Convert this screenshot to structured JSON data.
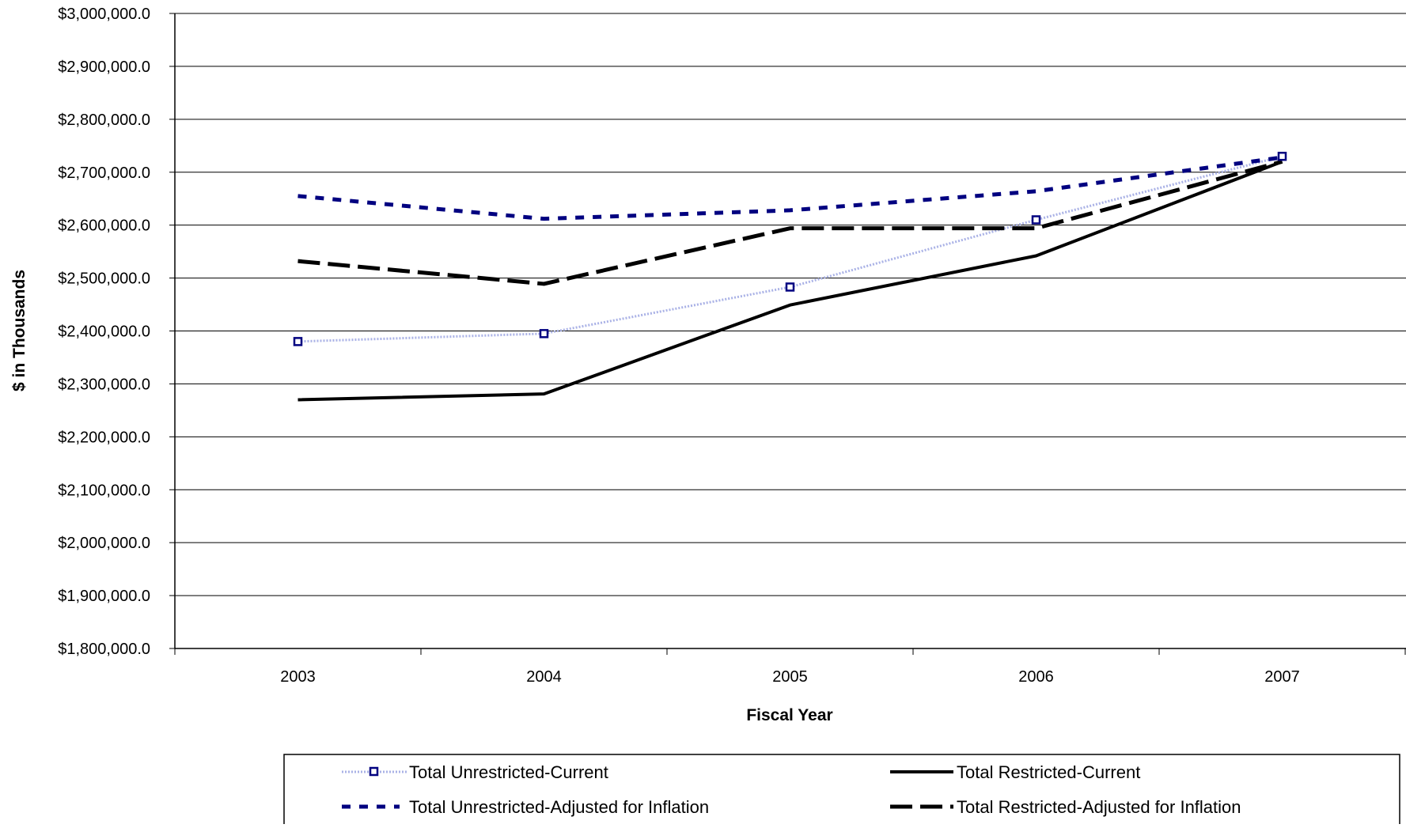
{
  "chart_data": {
    "type": "line",
    "title": "",
    "xlabel": "Fiscal Year",
    "ylabel": "$ in Thousands",
    "categories": [
      "2003",
      "2004",
      "2005",
      "2006",
      "2007"
    ],
    "ylim": [
      1800000,
      3000000
    ],
    "ytick_step": 100000,
    "ytick_labels": [
      "$1,800,000.0",
      "$1,900,000.0",
      "$2,000,000.0",
      "$2,100,000.0",
      "$2,200,000.0",
      "$2,300,000.0",
      "$2,400,000.0",
      "$2,500,000.0",
      "$2,600,000.0",
      "$2,700,000.0",
      "$2,800,000.0",
      "$2,900,000.0",
      "$3,000,000.0"
    ],
    "grid": true,
    "legend_position": "bottom",
    "series": [
      {
        "name": "Total Unrestricted-Current",
        "values": [
          2380000,
          2395000,
          2483000,
          2610000,
          2730000
        ],
        "color": "#aab2e6",
        "marker_color": "#000080",
        "style": "dotted-with-square-markers"
      },
      {
        "name": "Total Restricted-Current",
        "values": [
          2270000,
          2281000,
          2449000,
          2542000,
          2720000
        ],
        "color": "#000000",
        "style": "solid"
      },
      {
        "name": "Total Unrestricted-Adjusted for Inflation",
        "values": [
          2655000,
          2612000,
          2628000,
          2664000,
          2728000
        ],
        "color": "#000080",
        "style": "short-dash"
      },
      {
        "name": "Total Restricted-Adjusted for Inflation",
        "values": [
          2532000,
          2489000,
          2594000,
          2594000,
          2720000
        ],
        "color": "#000000",
        "style": "long-dash"
      }
    ]
  }
}
